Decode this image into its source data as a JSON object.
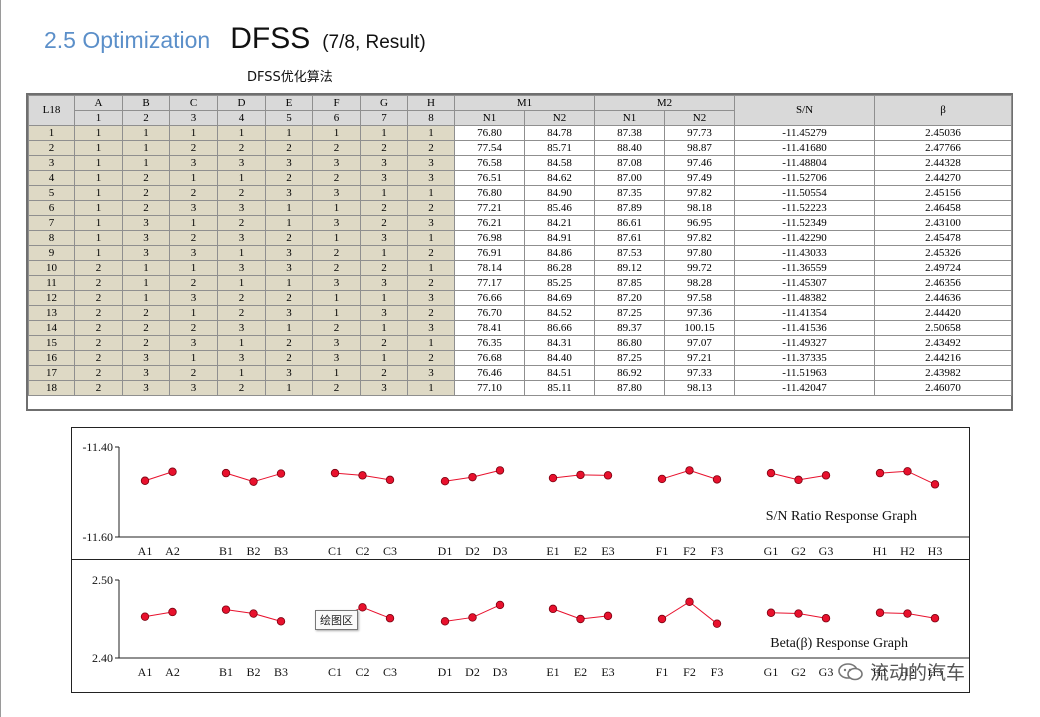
{
  "header": {
    "section": "2.5 Optimization",
    "main": "DFSS",
    "sub": "(7/8, Result)",
    "caption": "DFSS优化算法"
  },
  "table": {
    "corner": "L18",
    "factors": [
      "A",
      "B",
      "C",
      "D",
      "E",
      "F",
      "G",
      "H"
    ],
    "factor_nums": [
      "1",
      "2",
      "3",
      "4",
      "5",
      "6",
      "7",
      "8"
    ],
    "m_groups": [
      "M1",
      "M2"
    ],
    "m_sub": [
      "N1",
      "N2",
      "N1",
      "N2"
    ],
    "sn_header": "S/N",
    "beta_header": "β",
    "rows": [
      [
        "1",
        "1",
        "1",
        "1",
        "1",
        "1",
        "1",
        "1",
        "1",
        "76.80",
        "84.78",
        "87.38",
        "97.73",
        "-11.45279",
        "2.45036"
      ],
      [
        "2",
        "1",
        "1",
        "2",
        "2",
        "2",
        "2",
        "2",
        "2",
        "77.54",
        "85.71",
        "88.40",
        "98.87",
        "-11.41680",
        "2.47766"
      ],
      [
        "3",
        "1",
        "1",
        "3",
        "3",
        "3",
        "3",
        "3",
        "3",
        "76.58",
        "84.58",
        "87.08",
        "97.46",
        "-11.48804",
        "2.44328"
      ],
      [
        "4",
        "1",
        "2",
        "1",
        "1",
        "2",
        "2",
        "3",
        "3",
        "76.51",
        "84.62",
        "87.00",
        "97.49",
        "-11.52706",
        "2.44270"
      ],
      [
        "5",
        "1",
        "2",
        "2",
        "2",
        "3",
        "3",
        "1",
        "1",
        "76.80",
        "84.90",
        "87.35",
        "97.82",
        "-11.50554",
        "2.45156"
      ],
      [
        "6",
        "1",
        "2",
        "3",
        "3",
        "1",
        "1",
        "2",
        "2",
        "77.21",
        "85.46",
        "87.89",
        "98.18",
        "-11.52223",
        "2.46458"
      ],
      [
        "7",
        "1",
        "3",
        "1",
        "2",
        "1",
        "3",
        "2",
        "3",
        "76.21",
        "84.21",
        "86.61",
        "96.95",
        "-11.52349",
        "2.43100"
      ],
      [
        "8",
        "1",
        "3",
        "2",
        "3",
        "2",
        "1",
        "3",
        "1",
        "76.98",
        "84.91",
        "87.61",
        "97.82",
        "-11.42290",
        "2.45478"
      ],
      [
        "9",
        "1",
        "3",
        "3",
        "1",
        "3",
        "2",
        "1",
        "2",
        "76.91",
        "84.86",
        "87.53",
        "97.80",
        "-11.43033",
        "2.45326"
      ],
      [
        "10",
        "2",
        "1",
        "1",
        "3",
        "3",
        "2",
        "2",
        "1",
        "78.14",
        "86.28",
        "89.12",
        "99.72",
        "-11.36559",
        "2.49724"
      ],
      [
        "11",
        "2",
        "1",
        "2",
        "1",
        "1",
        "3",
        "3",
        "2",
        "77.17",
        "85.25",
        "87.85",
        "98.28",
        "-11.45307",
        "2.46356"
      ],
      [
        "12",
        "2",
        "1",
        "3",
        "2",
        "2",
        "1",
        "1",
        "3",
        "76.66",
        "84.69",
        "87.20",
        "97.58",
        "-11.48382",
        "2.44636"
      ],
      [
        "13",
        "2",
        "2",
        "1",
        "2",
        "3",
        "1",
        "3",
        "2",
        "76.70",
        "84.52",
        "87.25",
        "97.36",
        "-11.41354",
        "2.44420"
      ],
      [
        "14",
        "2",
        "2",
        "2",
        "3",
        "1",
        "2",
        "1",
        "3",
        "78.41",
        "86.66",
        "89.37",
        "100.15",
        "-11.41536",
        "2.50658"
      ],
      [
        "15",
        "2",
        "2",
        "3",
        "1",
        "2",
        "3",
        "2",
        "1",
        "76.35",
        "84.31",
        "86.80",
        "97.07",
        "-11.49327",
        "2.43492"
      ],
      [
        "16",
        "2",
        "3",
        "1",
        "3",
        "2",
        "3",
        "1",
        "2",
        "76.68",
        "84.40",
        "87.25",
        "97.21",
        "-11.37335",
        "2.44216"
      ],
      [
        "17",
        "2",
        "3",
        "2",
        "1",
        "3",
        "1",
        "2",
        "3",
        "76.46",
        "84.51",
        "86.92",
        "97.33",
        "-11.51963",
        "2.43982"
      ],
      [
        "18",
        "2",
        "3",
        "3",
        "2",
        "1",
        "2",
        "3",
        "1",
        "77.10",
        "85.11",
        "87.80",
        "98.13",
        "-11.42047",
        "2.46070"
      ]
    ]
  },
  "tooltip": "绘图区",
  "watermark": "流动的汽车",
  "colors": {
    "marker": "#e8112d",
    "line": "#e8112d",
    "header_bg": "#d9d9d9",
    "factor_bg": "#ded9c5",
    "title_accent": "#5b8fc9"
  },
  "chart_data": [
    {
      "type": "line",
      "title": "S/N Ratio Response Graph",
      "ylim": [
        -11.6,
        -11.4
      ],
      "yticks": [
        "-11.40",
        "-11.60"
      ],
      "groups": [
        {
          "labels": [
            "A1",
            "A2"
          ],
          "values": [
            -11.475,
            -11.455
          ]
        },
        {
          "labels": [
            "B1",
            "B2",
            "B3"
          ],
          "values": [
            -11.458,
            -11.477,
            -11.459
          ]
        },
        {
          "labels": [
            "C1",
            "C2",
            "C3"
          ],
          "values": [
            -11.458,
            -11.463,
            -11.473
          ]
        },
        {
          "labels": [
            "D1",
            "D2",
            "D3"
          ],
          "values": [
            -11.476,
            -11.467,
            -11.452
          ]
        },
        {
          "labels": [
            "E1",
            "E2",
            "E3"
          ],
          "values": [
            -11.469,
            -11.462,
            -11.463
          ]
        },
        {
          "labels": [
            "F1",
            "F2",
            "F3"
          ],
          "values": [
            -11.471,
            -11.452,
            -11.472
          ]
        },
        {
          "labels": [
            "G1",
            "G2",
            "G3"
          ],
          "values": [
            -11.458,
            -11.473,
            -11.463
          ]
        },
        {
          "labels": [
            "H1",
            "H2",
            "H3"
          ],
          "values": [
            -11.458,
            -11.454,
            -11.483
          ]
        }
      ]
    },
    {
      "type": "line",
      "title": "Beta(β) Response Graph",
      "ylim": [
        2.4,
        2.5
      ],
      "yticks": [
        "2.50",
        "2.40"
      ],
      "groups": [
        {
          "labels": [
            "A1",
            "A2"
          ],
          "values": [
            2.453,
            2.459
          ]
        },
        {
          "labels": [
            "B1",
            "B2",
            "B3"
          ],
          "values": [
            2.462,
            2.457,
            2.447
          ]
        },
        {
          "labels": [
            "C1",
            "C2",
            "C3"
          ],
          "values": [
            2.449,
            2.465,
            2.451
          ]
        },
        {
          "labels": [
            "D1",
            "D2",
            "D3"
          ],
          "values": [
            2.447,
            2.452,
            2.468
          ]
        },
        {
          "labels": [
            "E1",
            "E2",
            "E3"
          ],
          "values": [
            2.463,
            2.45,
            2.454
          ]
        },
        {
          "labels": [
            "F1",
            "F2",
            "F3"
          ],
          "values": [
            2.45,
            2.472,
            2.444
          ]
        },
        {
          "labels": [
            "G1",
            "G2",
            "G3"
          ],
          "values": [
            2.458,
            2.457,
            2.451
          ]
        },
        {
          "labels": [
            "H1",
            "H2",
            "H3"
          ],
          "values": [
            2.458,
            2.457,
            2.451
          ]
        }
      ]
    }
  ]
}
